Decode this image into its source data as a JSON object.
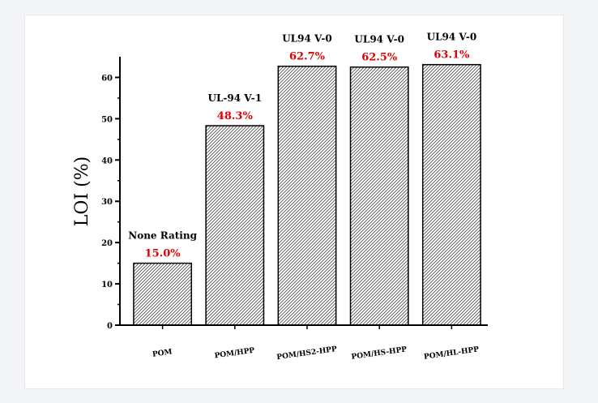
{
  "chart_data": {
    "type": "bar",
    "categories": [
      "POM",
      "POM/HPP",
      "POM/HS2-HPP",
      "POM/HS-HPP",
      "POM/HL-HPP"
    ],
    "values": [
      15.0,
      48.3,
      62.7,
      62.5,
      63.1
    ],
    "ratings": [
      "None Rating",
      "UL-94 V-1",
      "UL94 V-0",
      "UL94 V-0",
      "UL94 V-0"
    ],
    "value_labels": [
      "15.0%",
      "48.3%",
      "62.7%",
      "62.5%",
      "63.1%"
    ],
    "ylabel": "LOI (%)",
    "ylim": [
      0,
      65
    ],
    "yticks": [
      0,
      10,
      20,
      30,
      40,
      50,
      60
    ],
    "grid": false,
    "bar_pattern": "diagonal-hatch",
    "colors": {
      "bar_outline": "#000000",
      "value_label": "#e00000",
      "rating_label": "#000000",
      "hatch": "#555555"
    }
  }
}
